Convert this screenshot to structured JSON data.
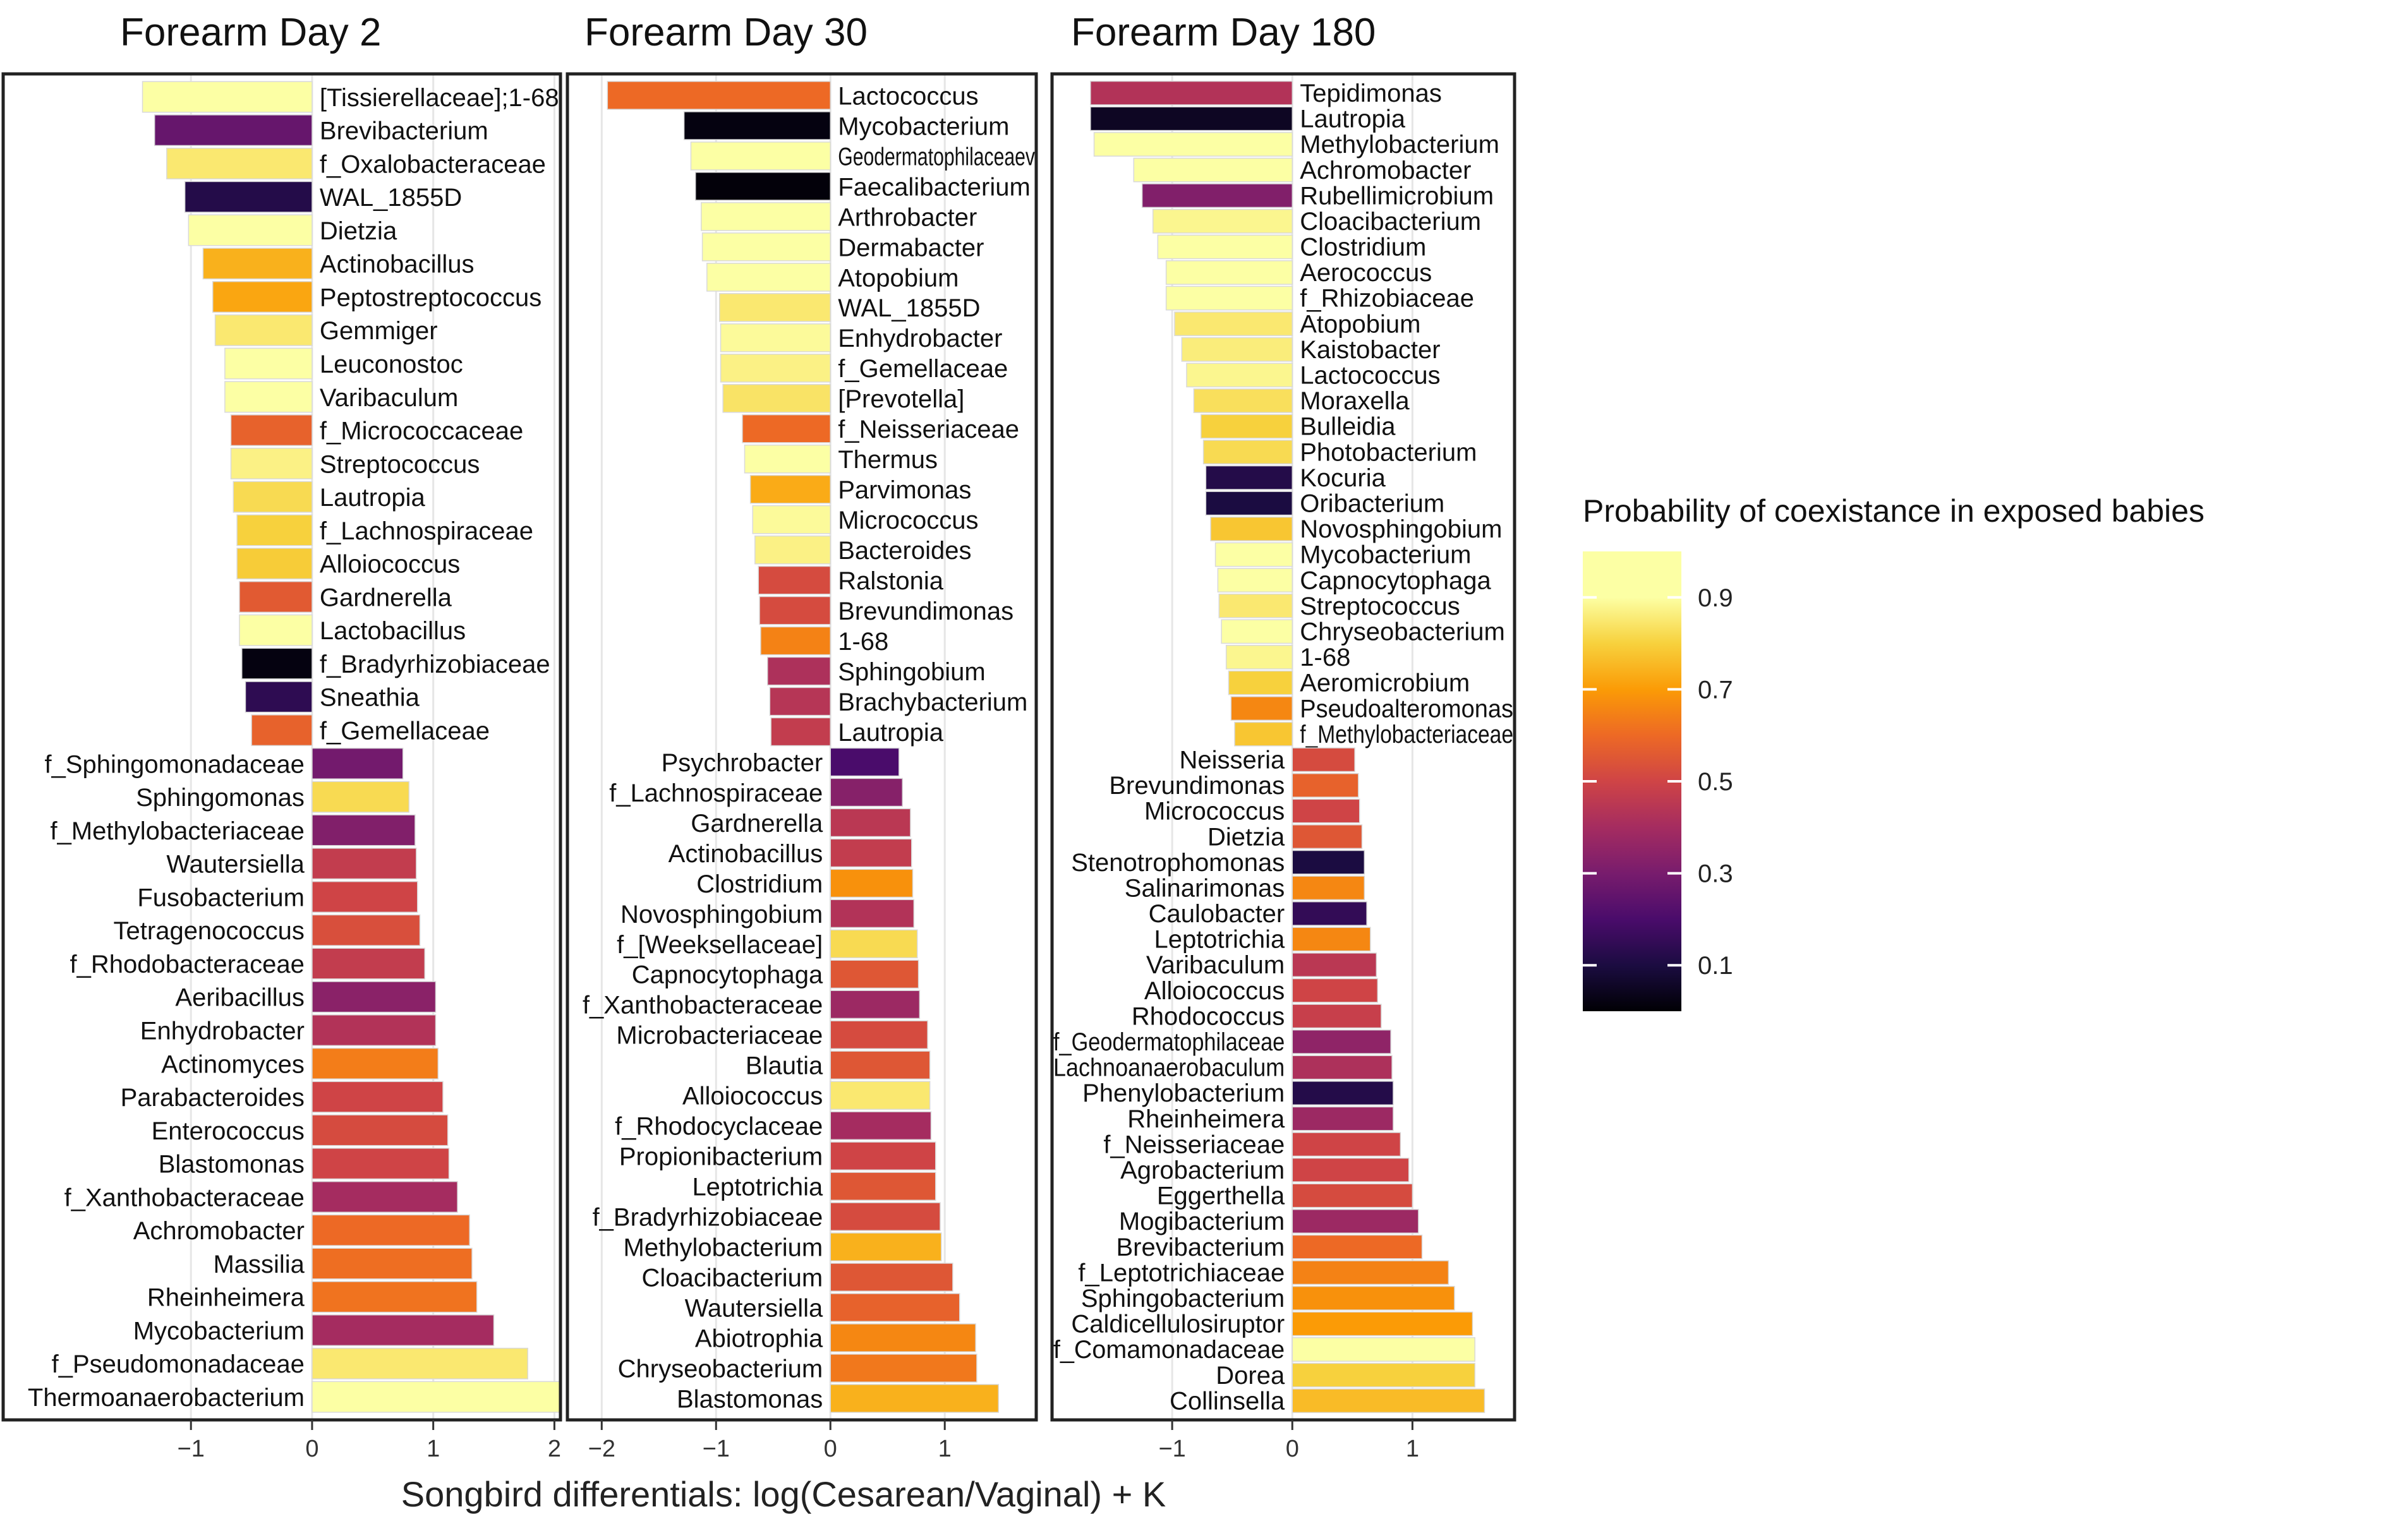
{
  "chart_data": {
    "type": "bar",
    "xlabel": "Songbird differentials: log(Cesarean/Vaginal) + K",
    "legend": {
      "title": "Probability of coexistance in exposed babies",
      "ticks": [
        0.9,
        0.7,
        0.5,
        0.3,
        0.1
      ],
      "tick_labels": [
        "0.9",
        "0.7",
        "0.5",
        "0.3",
        "0.1"
      ],
      "range": [
        0.0,
        1.0
      ],
      "colormap": "inferno",
      "placement": "right"
    },
    "panels": [
      {
        "title": "Forearm Day 2",
        "xlim": [
          -2.55,
          2.05
        ],
        "ticks": [
          -1,
          0,
          1,
          2
        ],
        "tick_labels": [
          "-1",
          "0",
          "1",
          "2"
        ],
        "grid": true,
        "bars": [
          {
            "label": "[Tissierellaceae];1-68",
            "value": -1.4,
            "p": 0.92
          },
          {
            "label": "Brevibacterium",
            "value": -1.3,
            "p": 0.26
          },
          {
            "label": "f_Oxalobacteraceae",
            "value": -1.2,
            "p": 0.85
          },
          {
            "label": "WAL_1855D",
            "value": -1.05,
            "p": 0.12
          },
          {
            "label": "Dietzia",
            "value": -1.02,
            "p": 0.93
          },
          {
            "label": "Actinobacillus",
            "value": -0.9,
            "p": 0.74
          },
          {
            "label": "Peptostreptococcus",
            "value": -0.82,
            "p": 0.72
          },
          {
            "label": "Gemmiger",
            "value": -0.8,
            "p": 0.85
          },
          {
            "label": "Leuconostoc",
            "value": -0.72,
            "p": 0.9
          },
          {
            "label": "Varibaculum",
            "value": -0.72,
            "p": 0.9
          },
          {
            "label": "f_Micrococcaceae",
            "value": -0.67,
            "p": 0.58
          },
          {
            "label": "Streptococcus",
            "value": -0.67,
            "p": 0.87
          },
          {
            "label": "Lautropia",
            "value": -0.65,
            "p": 0.82
          },
          {
            "label": "f_Lachnospiraceae",
            "value": -0.62,
            "p": 0.8
          },
          {
            "label": "Alloiococcus",
            "value": -0.62,
            "p": 0.79
          },
          {
            "label": "Gardnerella",
            "value": -0.6,
            "p": 0.56
          },
          {
            "label": "Lactobacillus",
            "value": -0.6,
            "p": 0.92
          },
          {
            "label": "f_Bradyrhizobiaceae",
            "value": -0.58,
            "p": 0.02
          },
          {
            "label": "Sneathia",
            "value": -0.55,
            "p": 0.14
          },
          {
            "label": "f_Gemellaceae",
            "value": -0.5,
            "p": 0.58
          },
          {
            "label": "f_Sphingomonadaceae",
            "value": 0.75,
            "p": 0.29
          },
          {
            "label": "Sphingomonas",
            "value": 0.8,
            "p": 0.82
          },
          {
            "label": "f_Methylobacteriaceae",
            "value": 0.85,
            "p": 0.32
          },
          {
            "label": "Wautersiella",
            "value": 0.86,
            "p": 0.47
          },
          {
            "label": "Fusobacterium",
            "value": 0.87,
            "p": 0.5
          },
          {
            "label": "Tetragenococcus",
            "value": 0.89,
            "p": 0.53
          },
          {
            "label": "f_Rhodobacteraceae",
            "value": 0.93,
            "p": 0.47
          },
          {
            "label": "Aeribacillus",
            "value": 1.02,
            "p": 0.34
          },
          {
            "label": "Enhydrobacter",
            "value": 1.02,
            "p": 0.43
          },
          {
            "label": "Actinomyces",
            "value": 1.04,
            "p": 0.64
          },
          {
            "label": "Parabacteroides",
            "value": 1.08,
            "p": 0.5
          },
          {
            "label": "Enterococcus",
            "value": 1.12,
            "p": 0.52
          },
          {
            "label": "Blastomonas",
            "value": 1.13,
            "p": 0.5
          },
          {
            "label": "f_Xanthobacteraceae",
            "value": 1.2,
            "p": 0.4
          },
          {
            "label": "Achromobacter",
            "value": 1.3,
            "p": 0.6
          },
          {
            "label": "Massilia",
            "value": 1.32,
            "p": 0.61
          },
          {
            "label": "Rheinheimera",
            "value": 1.36,
            "p": 0.62
          },
          {
            "label": "Mycobacterium",
            "value": 1.5,
            "p": 0.4
          },
          {
            "label": "f_Pseudomonadaceae",
            "value": 1.78,
            "p": 0.85
          },
          {
            "label": "Thermoanaerobacterium",
            "value": 2.05,
            "p": 0.9
          }
        ]
      },
      {
        "title": "Forearm Day 30",
        "xlim": [
          -2.3,
          1.8
        ],
        "ticks": [
          -2,
          -1,
          0,
          1
        ],
        "tick_labels": [
          "-2",
          "-1",
          "0",
          "1"
        ],
        "grid": true,
        "bars": [
          {
            "label": "Lactococcus",
            "value": -1.95,
            "p": 0.6
          },
          {
            "label": "Mycobacterium",
            "value": -1.28,
            "p": 0.02
          },
          {
            "label": "Geodermatophilaceaev",
            "value": -1.22,
            "p": 0.93
          },
          {
            "label": "Faecalibacterium",
            "value": -1.18,
            "p": 0.01
          },
          {
            "label": "Arthrobacter",
            "value": -1.13,
            "p": 0.9
          },
          {
            "label": "Dermabacter",
            "value": -1.12,
            "p": 0.92
          },
          {
            "label": "Atopobium",
            "value": -1.08,
            "p": 0.95
          },
          {
            "label": "WAL_1855D",
            "value": -0.97,
            "p": 0.85
          },
          {
            "label": "Enhydrobacter",
            "value": -0.96,
            "p": 0.89
          },
          {
            "label": "f_Gemellaceae",
            "value": -0.96,
            "p": 0.87
          },
          {
            "label": "[Prevotella]",
            "value": -0.94,
            "p": 0.84
          },
          {
            "label": "f_Neisseriaceae",
            "value": -0.77,
            "p": 0.6
          },
          {
            "label": "Thermus",
            "value": -0.75,
            "p": 0.95
          },
          {
            "label": "Parvimonas",
            "value": -0.7,
            "p": 0.73
          },
          {
            "label": "Micrococcus",
            "value": -0.68,
            "p": 0.89
          },
          {
            "label": "Bacteroides",
            "value": -0.66,
            "p": 0.87
          },
          {
            "label": "Ralstonia",
            "value": -0.63,
            "p": 0.52
          },
          {
            "label": "Brevundimonas",
            "value": -0.62,
            "p": 0.52
          },
          {
            "label": "1-68",
            "value": -0.61,
            "p": 0.65
          },
          {
            "label": "Sphingobium",
            "value": -0.55,
            "p": 0.42
          },
          {
            "label": "Brachybacterium",
            "value": -0.53,
            "p": 0.44
          },
          {
            "label": "Lautropia",
            "value": -0.52,
            "p": 0.47
          },
          {
            "label": "Psychrobacter",
            "value": 0.6,
            "p": 0.2
          },
          {
            "label": "f_Lachnospiraceae",
            "value": 0.63,
            "p": 0.33
          },
          {
            "label": "Gardnerella",
            "value": 0.7,
            "p": 0.45
          },
          {
            "label": "Actinobacillus",
            "value": 0.71,
            "p": 0.47
          },
          {
            "label": "Clostridium",
            "value": 0.72,
            "p": 0.68
          },
          {
            "label": "Novosphingobium",
            "value": 0.73,
            "p": 0.43
          },
          {
            "label": "f_[Weeksellaceae]",
            "value": 0.76,
            "p": 0.82
          },
          {
            "label": "Capnocytophaga",
            "value": 0.77,
            "p": 0.55
          },
          {
            "label": "f_Xanthobacteraceae",
            "value": 0.78,
            "p": 0.38
          },
          {
            "label": "Microbacteriaceae",
            "value": 0.85,
            "p": 0.52
          },
          {
            "label": "Blautia",
            "value": 0.87,
            "p": 0.55
          },
          {
            "label": "Alloiococcus",
            "value": 0.87,
            "p": 0.85
          },
          {
            "label": "f_Rhodocyclaceae",
            "value": 0.88,
            "p": 0.4
          },
          {
            "label": "Propionibacterium",
            "value": 0.92,
            "p": 0.5
          },
          {
            "label": "Leptotrichia",
            "value": 0.92,
            "p": 0.55
          },
          {
            "label": "f_Bradyrhizobiaceae",
            "value": 0.96,
            "p": 0.52
          },
          {
            "label": "Methylobacterium",
            "value": 0.97,
            "p": 0.74
          },
          {
            "label": "Cloacibacterium",
            "value": 1.07,
            "p": 0.55
          },
          {
            "label": "Wautersiella",
            "value": 1.13,
            "p": 0.58
          },
          {
            "label": "Abiotrophia",
            "value": 1.27,
            "p": 0.66
          },
          {
            "label": "Chryseobacterium",
            "value": 1.28,
            "p": 0.63
          },
          {
            "label": "Blastomonas",
            "value": 1.47,
            "p": 0.74
          }
        ]
      },
      {
        "title": "Forearm Day 180",
        "xlim": [
          -2.0,
          1.85
        ],
        "ticks": [
          -1,
          0,
          1
        ],
        "tick_labels": [
          "-1",
          "0",
          "1"
        ],
        "grid": true,
        "bars": [
          {
            "label": "Tepidimonas",
            "value": -1.68,
            "p": 0.43
          },
          {
            "label": "Lautropia",
            "value": -1.68,
            "p": 0.05
          },
          {
            "label": "Methylobacterium",
            "value": -1.65,
            "p": 0.97
          },
          {
            "label": "Achromobacter",
            "value": -1.32,
            "p": 0.95
          },
          {
            "label": "Rubellimicrobium",
            "value": -1.25,
            "p": 0.32
          },
          {
            "label": "Cloacibacterium",
            "value": -1.16,
            "p": 0.88
          },
          {
            "label": "Clostridium",
            "value": -1.12,
            "p": 0.9
          },
          {
            "label": "Aerococcus",
            "value": -1.05,
            "p": 0.92
          },
          {
            "label": "f_Rhizobiaceae",
            "value": -1.05,
            "p": 0.92
          },
          {
            "label": "Atopobium",
            "value": -0.98,
            "p": 0.85
          },
          {
            "label": "Kaistobacter",
            "value": -0.92,
            "p": 0.86
          },
          {
            "label": "Lactococcus",
            "value": -0.88,
            "p": 0.88
          },
          {
            "label": "Moraxella",
            "value": -0.82,
            "p": 0.83
          },
          {
            "label": "Bulleidia",
            "value": -0.76,
            "p": 0.8
          },
          {
            "label": "Photobacterium",
            "value": -0.74,
            "p": 0.82
          },
          {
            "label": "Kocuria",
            "value": -0.72,
            "p": 0.12
          },
          {
            "label": "Oribacterium",
            "value": -0.72,
            "p": 0.1
          },
          {
            "label": "Novosphingobium",
            "value": -0.68,
            "p": 0.78
          },
          {
            "label": "Mycobacterium",
            "value": -0.64,
            "p": 0.94
          },
          {
            "label": "Capnocytophaga",
            "value": -0.62,
            "p": 0.93
          },
          {
            "label": "Streptococcus",
            "value": -0.61,
            "p": 0.85
          },
          {
            "label": "Chryseobacterium",
            "value": -0.59,
            "p": 0.92
          },
          {
            "label": "1-68",
            "value": -0.55,
            "p": 0.88
          },
          {
            "label": "Aeromicrobium",
            "value": -0.53,
            "p": 0.8
          },
          {
            "label": "Pseudoalteromonas",
            "value": -0.51,
            "p": 0.66
          },
          {
            "label": "f_Methylobacteriaceae",
            "value": -0.48,
            "p": 0.78
          },
          {
            "label": "Neisseria",
            "value": 0.52,
            "p": 0.52
          },
          {
            "label": "Brevundimonas",
            "value": 0.55,
            "p": 0.58
          },
          {
            "label": "Micrococcus",
            "value": 0.56,
            "p": 0.5
          },
          {
            "label": "Dietzia",
            "value": 0.58,
            "p": 0.55
          },
          {
            "label": "Stenotrophomonas",
            "value": 0.6,
            "p": 0.1
          },
          {
            "label": "Salinarimonas",
            "value": 0.6,
            "p": 0.66
          },
          {
            "label": "Caulobacter",
            "value": 0.62,
            "p": 0.15
          },
          {
            "label": "Leptotrichia",
            "value": 0.65,
            "p": 0.66
          },
          {
            "label": "Varibaculum",
            "value": 0.7,
            "p": 0.45
          },
          {
            "label": "Alloiococcus",
            "value": 0.71,
            "p": 0.5
          },
          {
            "label": "Rhodococcus",
            "value": 0.74,
            "p": 0.48
          },
          {
            "label": "f_Geodermatophilaceae",
            "value": 0.82,
            "p": 0.35
          },
          {
            "label": "Lachnoanaerobaculum",
            "value": 0.83,
            "p": 0.42
          },
          {
            "label": "Phenylobacterium",
            "value": 0.84,
            "p": 0.12
          },
          {
            "label": "Rheinheimera",
            "value": 0.84,
            "p": 0.38
          },
          {
            "label": "f_Neisseriaceae",
            "value": 0.9,
            "p": 0.5
          },
          {
            "label": "Agrobacterium",
            "value": 0.97,
            "p": 0.5
          },
          {
            "label": "Eggerthella",
            "value": 1.0,
            "p": 0.52
          },
          {
            "label": "Mogibacterium",
            "value": 1.05,
            "p": 0.38
          },
          {
            "label": "Brevibacterium",
            "value": 1.08,
            "p": 0.6
          },
          {
            "label": "f_Leptotrichiaceae",
            "value": 1.3,
            "p": 0.65
          },
          {
            "label": "Sphingobacterium",
            "value": 1.35,
            "p": 0.68
          },
          {
            "label": "Caldicellulosiruptor",
            "value": 1.5,
            "p": 0.7
          },
          {
            "label": "f_Comamonadaceae",
            "value": 1.52,
            "p": 0.97
          },
          {
            "label": "Dorea",
            "value": 1.52,
            "p": 0.8
          },
          {
            "label": "Collinsella",
            "value": 1.6,
            "p": 0.76
          }
        ]
      }
    ]
  }
}
